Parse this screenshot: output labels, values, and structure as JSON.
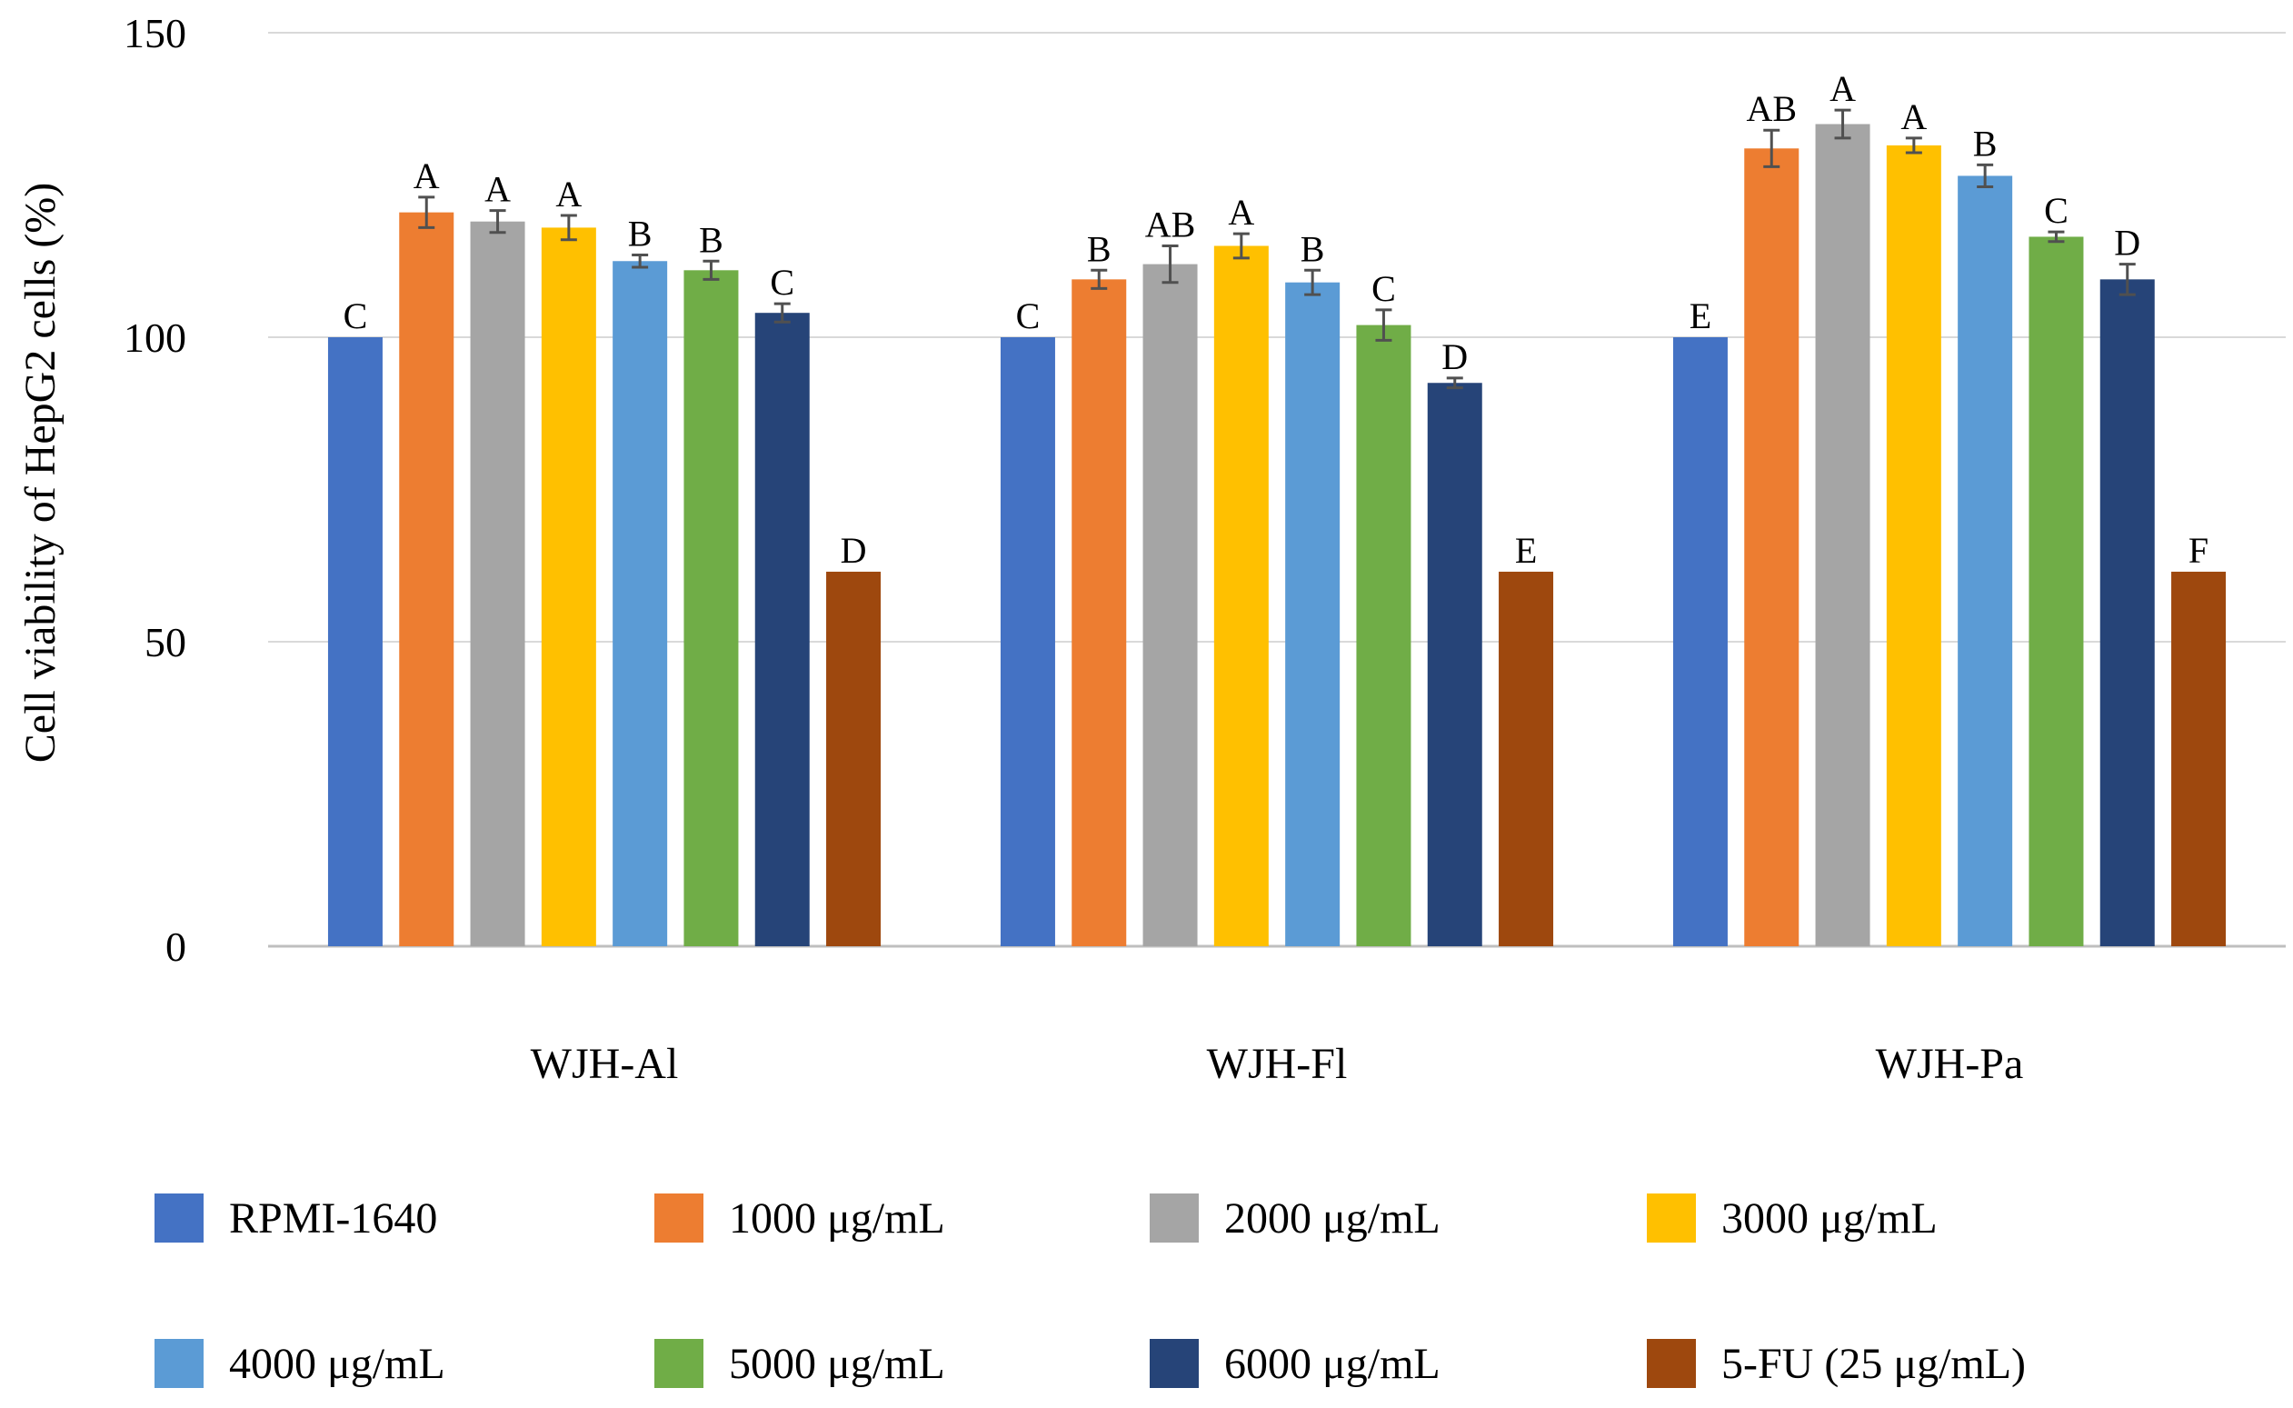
{
  "chart_data": {
    "type": "bar",
    "title": "",
    "xlabel": "",
    "ylabel": "Cell viability of HepG2 cells (%)",
    "ylim": [
      0,
      150
    ],
    "yticks": [
      0,
      50,
      100,
      150
    ],
    "grid": true,
    "legend_position": "bottom",
    "categories": [
      "WJH-Al",
      "WJH-Fl",
      "WJH-Pa"
    ],
    "series": [
      {
        "name": "RPMI-1640",
        "color": "#4472C4",
        "values": [
          100,
          100,
          100
        ],
        "errors": [
          0,
          0,
          0
        ],
        "letters": [
          "C",
          "C",
          "E"
        ]
      },
      {
        "name": "1000 μg/mL",
        "color": "#ED7D31",
        "values": [
          120.5,
          109.5,
          131
        ],
        "errors": [
          2.5,
          1.5,
          3
        ],
        "letters": [
          "A",
          "B",
          "AB"
        ]
      },
      {
        "name": "2000 μg/mL",
        "color": "#A5A5A5",
        "values": [
          119,
          112,
          135
        ],
        "errors": [
          1.8,
          3,
          2.3
        ],
        "letters": [
          "A",
          "AB",
          "A"
        ]
      },
      {
        "name": "3000 μg/mL",
        "color": "#FFC000",
        "values": [
          118,
          115,
          131.5
        ],
        "errors": [
          2,
          2,
          1.2
        ],
        "letters": [
          "A",
          "A",
          "A"
        ]
      },
      {
        "name": "4000 μg/mL",
        "color": "#5B9BD5",
        "values": [
          112.5,
          109,
          126.5
        ],
        "errors": [
          1,
          2,
          1.8
        ],
        "letters": [
          "B",
          "B",
          "B"
        ]
      },
      {
        "name": "5000 μg/mL",
        "color": "#70AD47",
        "values": [
          111,
          102,
          116.5
        ],
        "errors": [
          1.5,
          2.5,
          0.8
        ],
        "letters": [
          "B",
          "C",
          "C"
        ]
      },
      {
        "name": "6000 μg/mL",
        "color": "#264478",
        "values": [
          104,
          92.5,
          109.5
        ],
        "errors": [
          1.5,
          0.8,
          2.5
        ],
        "letters": [
          "C",
          "D",
          "D"
        ]
      },
      {
        "name": "5-FU (25 μg/mL)",
        "color": "#9E480E",
        "values": [
          61.5,
          61.5,
          61.5
        ],
        "errors": [
          0,
          0,
          0
        ],
        "letters": [
          "D",
          "E",
          "F"
        ]
      }
    ]
  }
}
